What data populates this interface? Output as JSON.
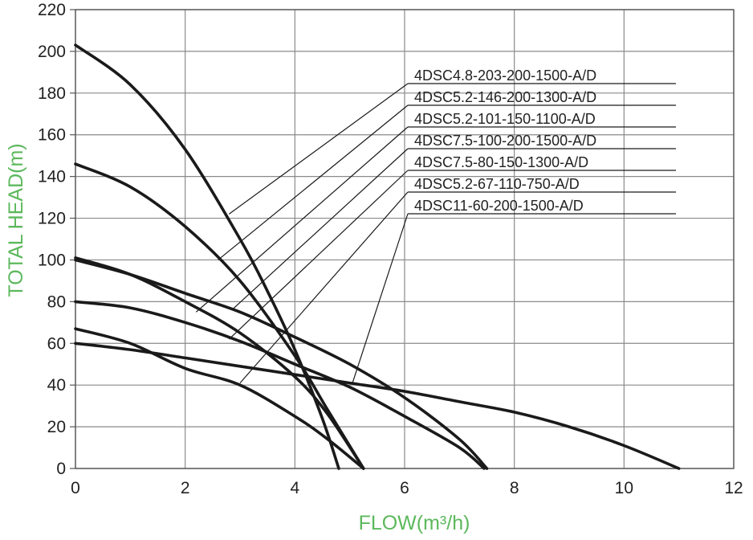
{
  "chart_data": {
    "type": "line",
    "title": "",
    "xlabel": "FLOW(m³/h)",
    "ylabel": "TOTAL HEAD(m)",
    "xlim": [
      0,
      12
    ],
    "ylim": [
      0,
      220
    ],
    "x_ticks": [
      0,
      2,
      4,
      6,
      8,
      10,
      12
    ],
    "y_ticks": [
      0,
      20,
      40,
      60,
      80,
      100,
      120,
      140,
      160,
      180,
      200,
      220
    ],
    "grid": true,
    "label_color": "#5cb85c",
    "series": [
      {
        "name": "4DSC4.8-203-200-1500-A/D",
        "points": [
          [
            0,
            203
          ],
          [
            1,
            184
          ],
          [
            2,
            153
          ],
          [
            3,
            110
          ],
          [
            3.5,
            85
          ],
          [
            4,
            57
          ],
          [
            4.5,
            24
          ],
          [
            4.8,
            0
          ]
        ],
        "pointer_on_curve": [
          2.8,
          122
        ]
      },
      {
        "name": "4DSC5.2-146-200-1300-A/D",
        "points": [
          [
            0,
            146
          ],
          [
            1,
            135
          ],
          [
            2,
            116
          ],
          [
            3,
            90
          ],
          [
            4,
            54
          ],
          [
            4.6,
            28
          ],
          [
            5.25,
            0
          ]
        ],
        "pointer_on_curve": [
          2.6,
          100
        ]
      },
      {
        "name": "4DSC5.2-101-150-1100-A/D",
        "points": [
          [
            0,
            101
          ],
          [
            1,
            93
          ],
          [
            2,
            80
          ],
          [
            3,
            65
          ],
          [
            4,
            44
          ],
          [
            4.6,
            26
          ],
          [
            5.25,
            0
          ]
        ],
        "pointer_on_curve": [
          2.2,
          75
        ]
      },
      {
        "name": "4DSC7.5-100-200-1500-A/D",
        "points": [
          [
            0,
            100
          ],
          [
            1,
            93
          ],
          [
            2,
            84
          ],
          [
            3,
            75
          ],
          [
            4,
            63
          ],
          [
            5,
            50
          ],
          [
            6,
            34
          ],
          [
            7,
            14
          ],
          [
            7.5,
            0
          ]
        ],
        "pointer_on_curve": [
          2.85,
          76
        ]
      },
      {
        "name": "4DSC7.5-80-150-1300-A/D",
        "points": [
          [
            0,
            80
          ],
          [
            1,
            77
          ],
          [
            2,
            70
          ],
          [
            3,
            61
          ],
          [
            4,
            50
          ],
          [
            5,
            39
          ],
          [
            6,
            25
          ],
          [
            7,
            10
          ],
          [
            7.45,
            0
          ]
        ],
        "pointer_on_curve": [
          2.8,
          62
        ]
      },
      {
        "name": "4DSC5.2-67-110-750-A/D",
        "points": [
          [
            0,
            67
          ],
          [
            1,
            60
          ],
          [
            2,
            48
          ],
          [
            3,
            40
          ],
          [
            4,
            25
          ],
          [
            4.6,
            14
          ],
          [
            5.25,
            0
          ]
        ],
        "pointer_on_curve": [
          3.0,
          41
        ]
      },
      {
        "name": "4DSC11-60-200-1500-A/D",
        "points": [
          [
            0,
            60
          ],
          [
            1,
            57
          ],
          [
            2,
            53
          ],
          [
            3,
            49
          ],
          [
            4,
            45
          ],
          [
            5,
            41
          ],
          [
            6,
            37
          ],
          [
            7,
            32
          ],
          [
            8,
            27
          ],
          [
            9,
            20
          ],
          [
            10,
            11
          ],
          [
            11,
            0
          ]
        ],
        "pointer_on_curve": [
          5.05,
          41
        ]
      }
    ]
  }
}
